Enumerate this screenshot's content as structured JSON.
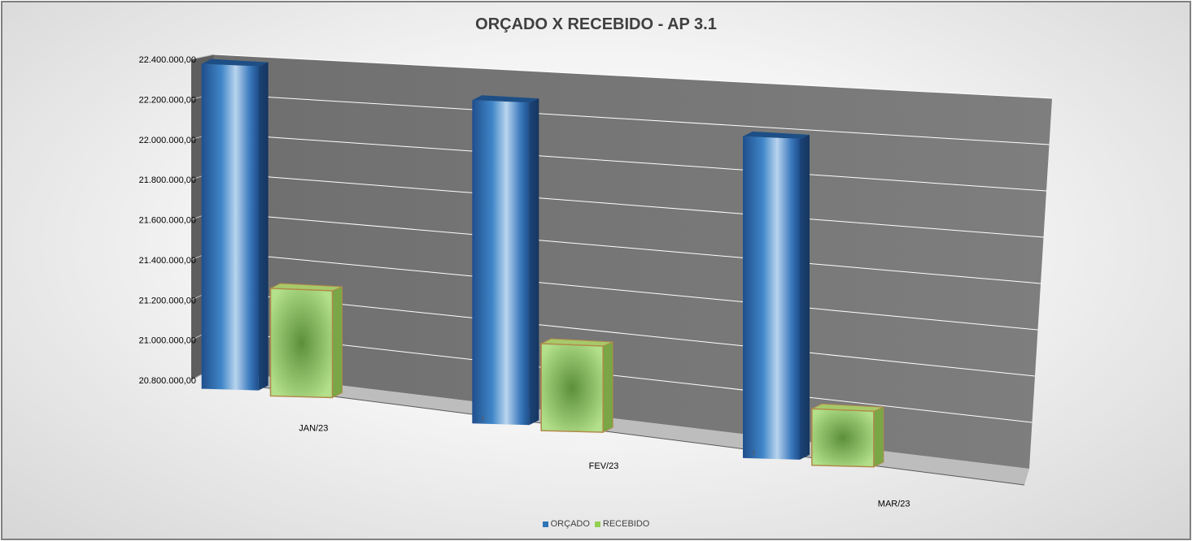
{
  "chart_data": {
    "type": "bar",
    "title": "ORÇADO X RECEBIDO - AP 3.1",
    "categories": [
      "JAN/23",
      "FEV/23",
      "MAR/23"
    ],
    "y_ticks": [
      "20.800.000,00",
      "21.000.000,00",
      "21.200.000,00",
      "21.400.000,00",
      "21.600.000,00",
      "21.800.000,00",
      "22.000.000,00",
      "22.200.000,00",
      "22.400.000,00"
    ],
    "ylim": [
      20800000,
      22400000
    ],
    "grid": true,
    "legend_position": "bottom",
    "series": [
      {
        "name": "ORÇADO",
        "color": "#2e75b6",
        "values": [
          22400000,
          22400000,
          22400000
        ]
      },
      {
        "name": "RECEBIDO",
        "color": "#92d050",
        "values": [
          21250000,
          21150000,
          21000000
        ]
      }
    ]
  }
}
